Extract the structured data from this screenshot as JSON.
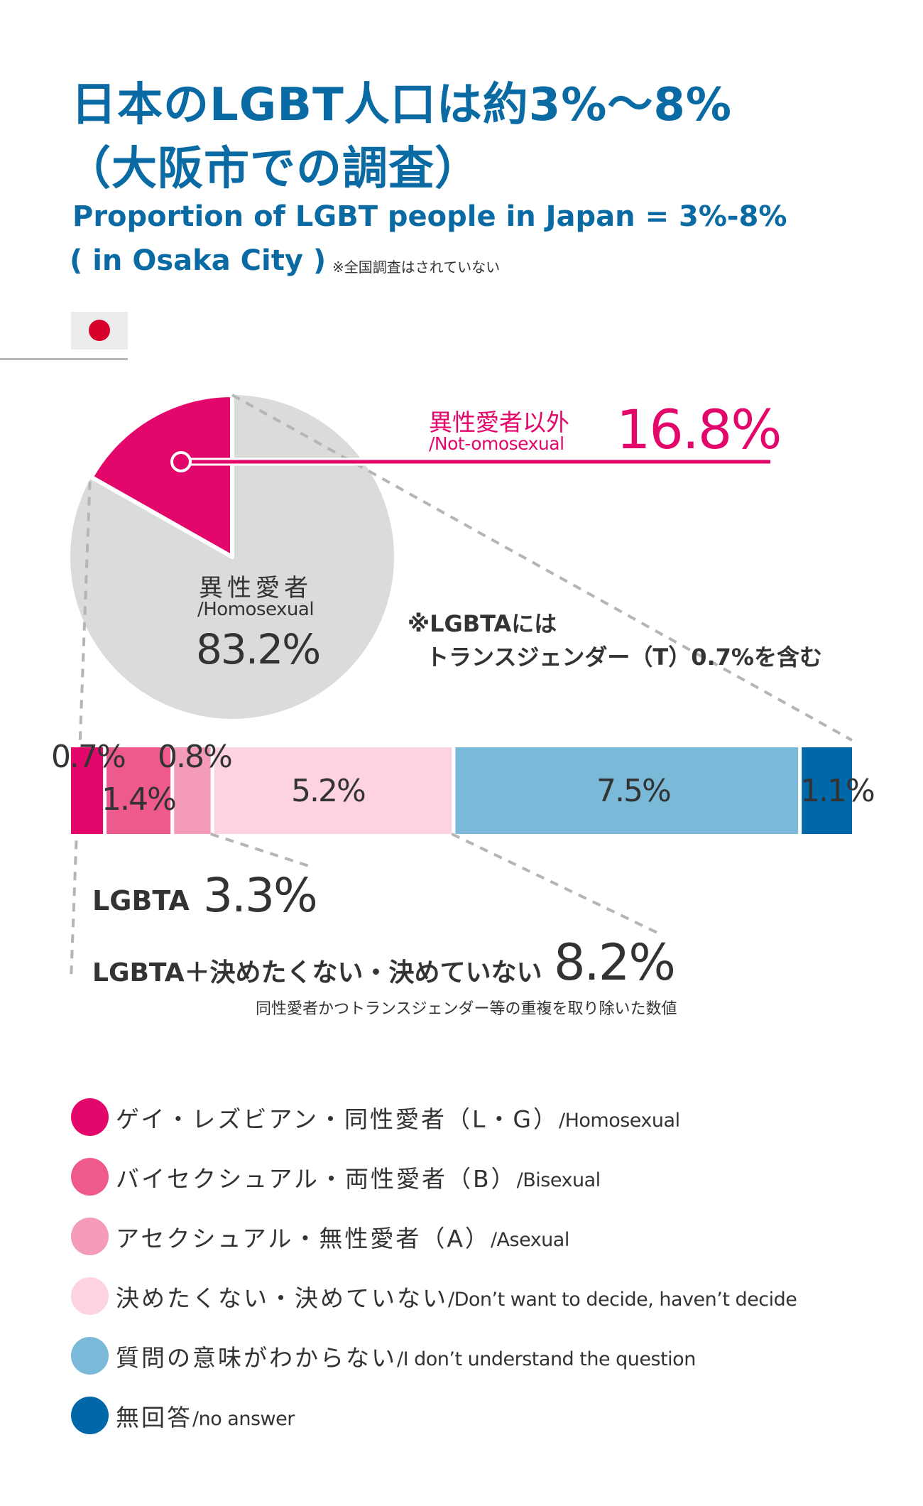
{
  "header": {
    "title_line1": "日本のLGBT人口は約3%〜8%",
    "title_line2": "（大阪市での調査）",
    "subtitle_line1": "Proportion of LGBT people in Japan = 3%-8%",
    "subtitle_line2": "( in Osaka City )",
    "subtitle_note": "※全国調査はされていない"
  },
  "flag": {
    "country": "Japan",
    "icon": "japan-flag-icon",
    "bg_color": "#ececec",
    "sun_color": "#d7002a"
  },
  "chart_data": [
    {
      "type": "pie",
      "slices": [
        {
          "name": "異性愛者以外",
          "name_en": "/Not-omosexual",
          "value": 16.8,
          "label": "16.8%",
          "color": "#e3066b"
        },
        {
          "name": "異性愛者",
          "name_en": "/Homosexual",
          "value": 83.2,
          "label": "83.2%",
          "color": "#dadbdb"
        }
      ]
    },
    {
      "type": "bar",
      "orientation": "horizontal-stacked",
      "segments": [
        {
          "key": "LG",
          "value": 0.7,
          "label": "0.7%",
          "color": "#e3066b"
        },
        {
          "key": "B",
          "value": 1.4,
          "label": "1.4%",
          "color": "#ef5a8e"
        },
        {
          "key": "A",
          "value": 0.8,
          "label": "0.8%",
          "color": "#f49bbb"
        },
        {
          "key": "undecided",
          "value": 5.2,
          "label": "5.2%",
          "color": "#fdd3e1"
        },
        {
          "key": "dont_understand",
          "value": 7.5,
          "label": "7.5%",
          "color": "#7ab9d7"
        },
        {
          "key": "no_answer",
          "value": 1.1,
          "label": "1.1%",
          "color": "#0067a8"
        }
      ]
    }
  ],
  "note": {
    "line1": "※LGBTAには",
    "line2": "トランスジェンダー（T）0.7%を含む"
  },
  "summary": {
    "lgbta_label": "LGBTA",
    "lgbta_value": "3.3%",
    "lgbta_plus_label": "LGBTA＋決めたくない・決めていない",
    "lgbta_plus_value": "8.2%",
    "footnote": "同性愛者かつトランスジェンダー等の重複を取り除いた数値"
  },
  "legend": [
    {
      "ja": "ゲイ・レズビアン・同性愛者（L・G）",
      "en": "/Homosexual",
      "color": "#e3066b"
    },
    {
      "ja": "バイセクシュアル・両性愛者（B）",
      "en": "/Bisexual",
      "color": "#ef5a8e"
    },
    {
      "ja": "アセクシュアル・無性愛者（A）",
      "en": "/Asexual",
      "color": "#f49bbb"
    },
    {
      "ja": "決めたくない・決めていない",
      "en": "/Don’t want to decide, haven’t decide",
      "color": "#fdd3e1"
    },
    {
      "ja": "質問の意味がわからない",
      "en": "/I don’t understand the question",
      "color": "#7ab9d7"
    },
    {
      "ja": "無回答",
      "en": "/no answer",
      "color": "#0067a8"
    }
  ]
}
